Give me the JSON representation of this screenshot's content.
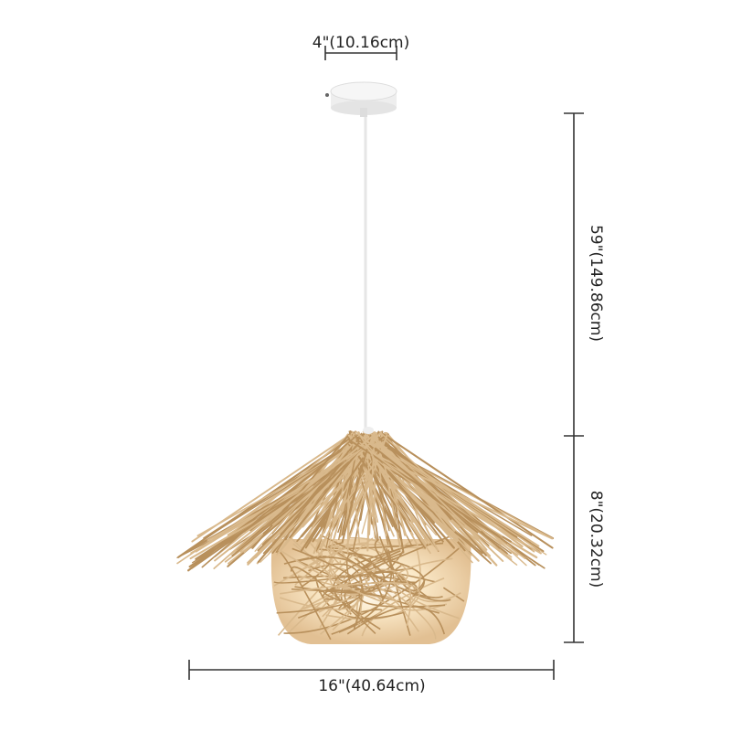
{
  "product": {
    "type": "rattan pendant light",
    "dimensions": {
      "canopy_width": "4\"(10.16cm)",
      "cord_length": "59\"(149.86cm)",
      "shade_height": "8\"(20.32cm)",
      "shade_width": "16\"(40.64cm)"
    }
  },
  "colors": {
    "rattan": "#d9b98c",
    "rattan_dark": "#b8905c",
    "glow": "#fff4dc",
    "dimension_line": "#333333"
  }
}
